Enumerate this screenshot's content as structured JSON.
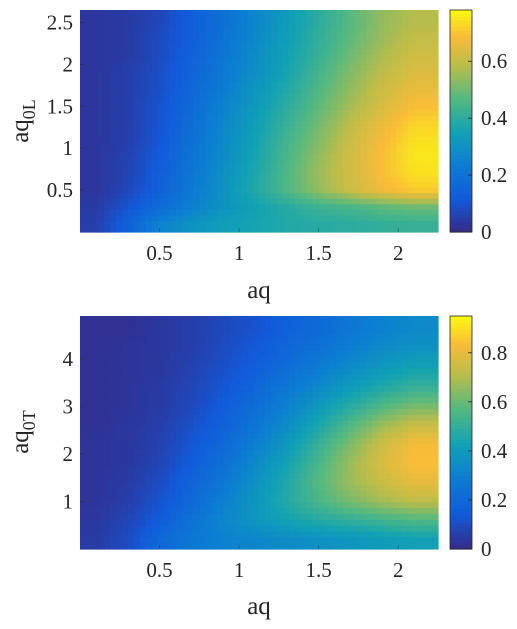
{
  "chart_data": [
    {
      "type": "heatmap",
      "xlabel": "aq",
      "ylabel": "aq",
      "ylabel_subscript": "0L",
      "xlim": [
        0,
        2.25
      ],
      "ylim": [
        0,
        2.65
      ],
      "xticks": [
        0.5,
        1,
        1.5,
        2
      ],
      "xtick_labels": [
        "0.5",
        "1",
        "1.5",
        "2"
      ],
      "yticks": [
        0.5,
        1,
        1.5,
        2,
        2.5
      ],
      "ytick_labels": [
        "0.5",
        "1",
        "1.5",
        "2",
        "2.5"
      ],
      "colorbar": {
        "limits": [
          0,
          0.78
        ],
        "ticks": [
          0,
          0.2,
          0.4,
          0.6
        ],
        "tick_labels": [
          "0",
          "0.2",
          "0.4",
          "0.6"
        ],
        "colormap": "parula"
      },
      "x": [
        0.1,
        0.3,
        0.5,
        0.7,
        0.9,
        1.1,
        1.3,
        1.5,
        1.7,
        1.9,
        2.1
      ],
      "y": [
        0.1,
        0.3,
        0.5,
        0.7,
        0.9,
        1.1,
        1.3,
        1.5,
        1.7,
        1.9,
        2.1,
        2.3,
        2.5
      ],
      "z": [
        [
          0.05,
          0.14,
          0.25,
          0.3,
          0.34,
          0.36,
          0.38,
          0.39,
          0.4,
          0.41,
          0.42
        ],
        [
          0.04,
          0.1,
          0.17,
          0.24,
          0.3,
          0.35,
          0.39,
          0.43,
          0.45,
          0.48,
          0.5
        ],
        [
          0.03,
          0.07,
          0.14,
          0.22,
          0.3,
          0.38,
          0.46,
          0.54,
          0.61,
          0.67,
          0.71
        ],
        [
          0.03,
          0.06,
          0.13,
          0.21,
          0.29,
          0.37,
          0.46,
          0.55,
          0.62,
          0.69,
          0.74
        ],
        [
          0.03,
          0.06,
          0.12,
          0.2,
          0.28,
          0.36,
          0.45,
          0.54,
          0.62,
          0.69,
          0.75
        ],
        [
          0.03,
          0.05,
          0.11,
          0.19,
          0.27,
          0.35,
          0.44,
          0.52,
          0.61,
          0.68,
          0.74
        ],
        [
          0.03,
          0.05,
          0.1,
          0.18,
          0.26,
          0.34,
          0.42,
          0.5,
          0.59,
          0.66,
          0.72
        ],
        [
          0.03,
          0.05,
          0.1,
          0.17,
          0.25,
          0.32,
          0.4,
          0.48,
          0.56,
          0.63,
          0.69
        ],
        [
          0.03,
          0.05,
          0.09,
          0.16,
          0.23,
          0.31,
          0.38,
          0.46,
          0.54,
          0.61,
          0.66
        ],
        [
          0.03,
          0.05,
          0.09,
          0.15,
          0.22,
          0.29,
          0.36,
          0.44,
          0.52,
          0.59,
          0.64
        ],
        [
          0.03,
          0.04,
          0.08,
          0.14,
          0.21,
          0.28,
          0.35,
          0.42,
          0.5,
          0.57,
          0.62
        ],
        [
          0.03,
          0.04,
          0.08,
          0.13,
          0.2,
          0.27,
          0.34,
          0.41,
          0.48,
          0.55,
          0.6
        ],
        [
          0.03,
          0.04,
          0.07,
          0.13,
          0.19,
          0.26,
          0.33,
          0.4,
          0.47,
          0.54,
          0.58
        ]
      ]
    },
    {
      "type": "heatmap",
      "xlabel": "aq",
      "ylabel": "aq",
      "ylabel_subscript": "0T",
      "xlim": [
        0,
        2.25
      ],
      "ylim": [
        0,
        4.9
      ],
      "xticks": [
        0.5,
        1,
        1.5,
        2
      ],
      "xtick_labels": [
        "0.5",
        "1",
        "1.5",
        "2"
      ],
      "yticks": [
        1,
        2,
        3,
        4
      ],
      "ytick_labels": [
        "1",
        "2",
        "3",
        "4"
      ],
      "colorbar": {
        "limits": [
          0,
          0.95
        ],
        "ticks": [
          0,
          0.2,
          0.4,
          0.6,
          0.8
        ],
        "tick_labels": [
          "0",
          "0.2",
          "0.4",
          "0.6",
          "0.8"
        ],
        "colormap": "parula"
      },
      "x": [
        0.1,
        0.3,
        0.5,
        0.7,
        0.9,
        1.1,
        1.3,
        1.5,
        1.7,
        1.9,
        2.1
      ],
      "y": [
        0.2,
        0.6,
        1.0,
        1.4,
        1.8,
        2.2,
        2.6,
        3.0,
        3.4,
        3.8,
        4.2,
        4.6
      ],
      "z": [
        [
          0.05,
          0.1,
          0.2,
          0.26,
          0.3,
          0.32,
          0.34,
          0.36,
          0.38,
          0.4,
          0.42
        ],
        [
          0.04,
          0.08,
          0.15,
          0.24,
          0.32,
          0.38,
          0.43,
          0.47,
          0.5,
          0.53,
          0.56
        ],
        [
          0.03,
          0.06,
          0.12,
          0.2,
          0.29,
          0.38,
          0.47,
          0.55,
          0.62,
          0.68,
          0.72
        ],
        [
          0.03,
          0.05,
          0.1,
          0.18,
          0.26,
          0.36,
          0.46,
          0.57,
          0.67,
          0.74,
          0.8
        ],
        [
          0.03,
          0.04,
          0.08,
          0.15,
          0.23,
          0.33,
          0.43,
          0.55,
          0.67,
          0.77,
          0.84
        ],
        [
          0.03,
          0.04,
          0.07,
          0.13,
          0.2,
          0.29,
          0.39,
          0.51,
          0.63,
          0.75,
          0.83
        ],
        [
          0.02,
          0.04,
          0.06,
          0.11,
          0.17,
          0.25,
          0.34,
          0.45,
          0.56,
          0.67,
          0.74
        ],
        [
          0.02,
          0.03,
          0.05,
          0.09,
          0.15,
          0.22,
          0.3,
          0.39,
          0.48,
          0.56,
          0.62
        ],
        [
          0.02,
          0.03,
          0.05,
          0.08,
          0.13,
          0.19,
          0.26,
          0.33,
          0.4,
          0.46,
          0.51
        ],
        [
          0.02,
          0.03,
          0.04,
          0.07,
          0.11,
          0.16,
          0.22,
          0.28,
          0.34,
          0.39,
          0.43
        ],
        [
          0.02,
          0.03,
          0.04,
          0.06,
          0.1,
          0.14,
          0.19,
          0.24,
          0.29,
          0.34,
          0.37
        ],
        [
          0.02,
          0.02,
          0.04,
          0.06,
          0.09,
          0.12,
          0.17,
          0.21,
          0.26,
          0.3,
          0.33
        ]
      ]
    }
  ]
}
